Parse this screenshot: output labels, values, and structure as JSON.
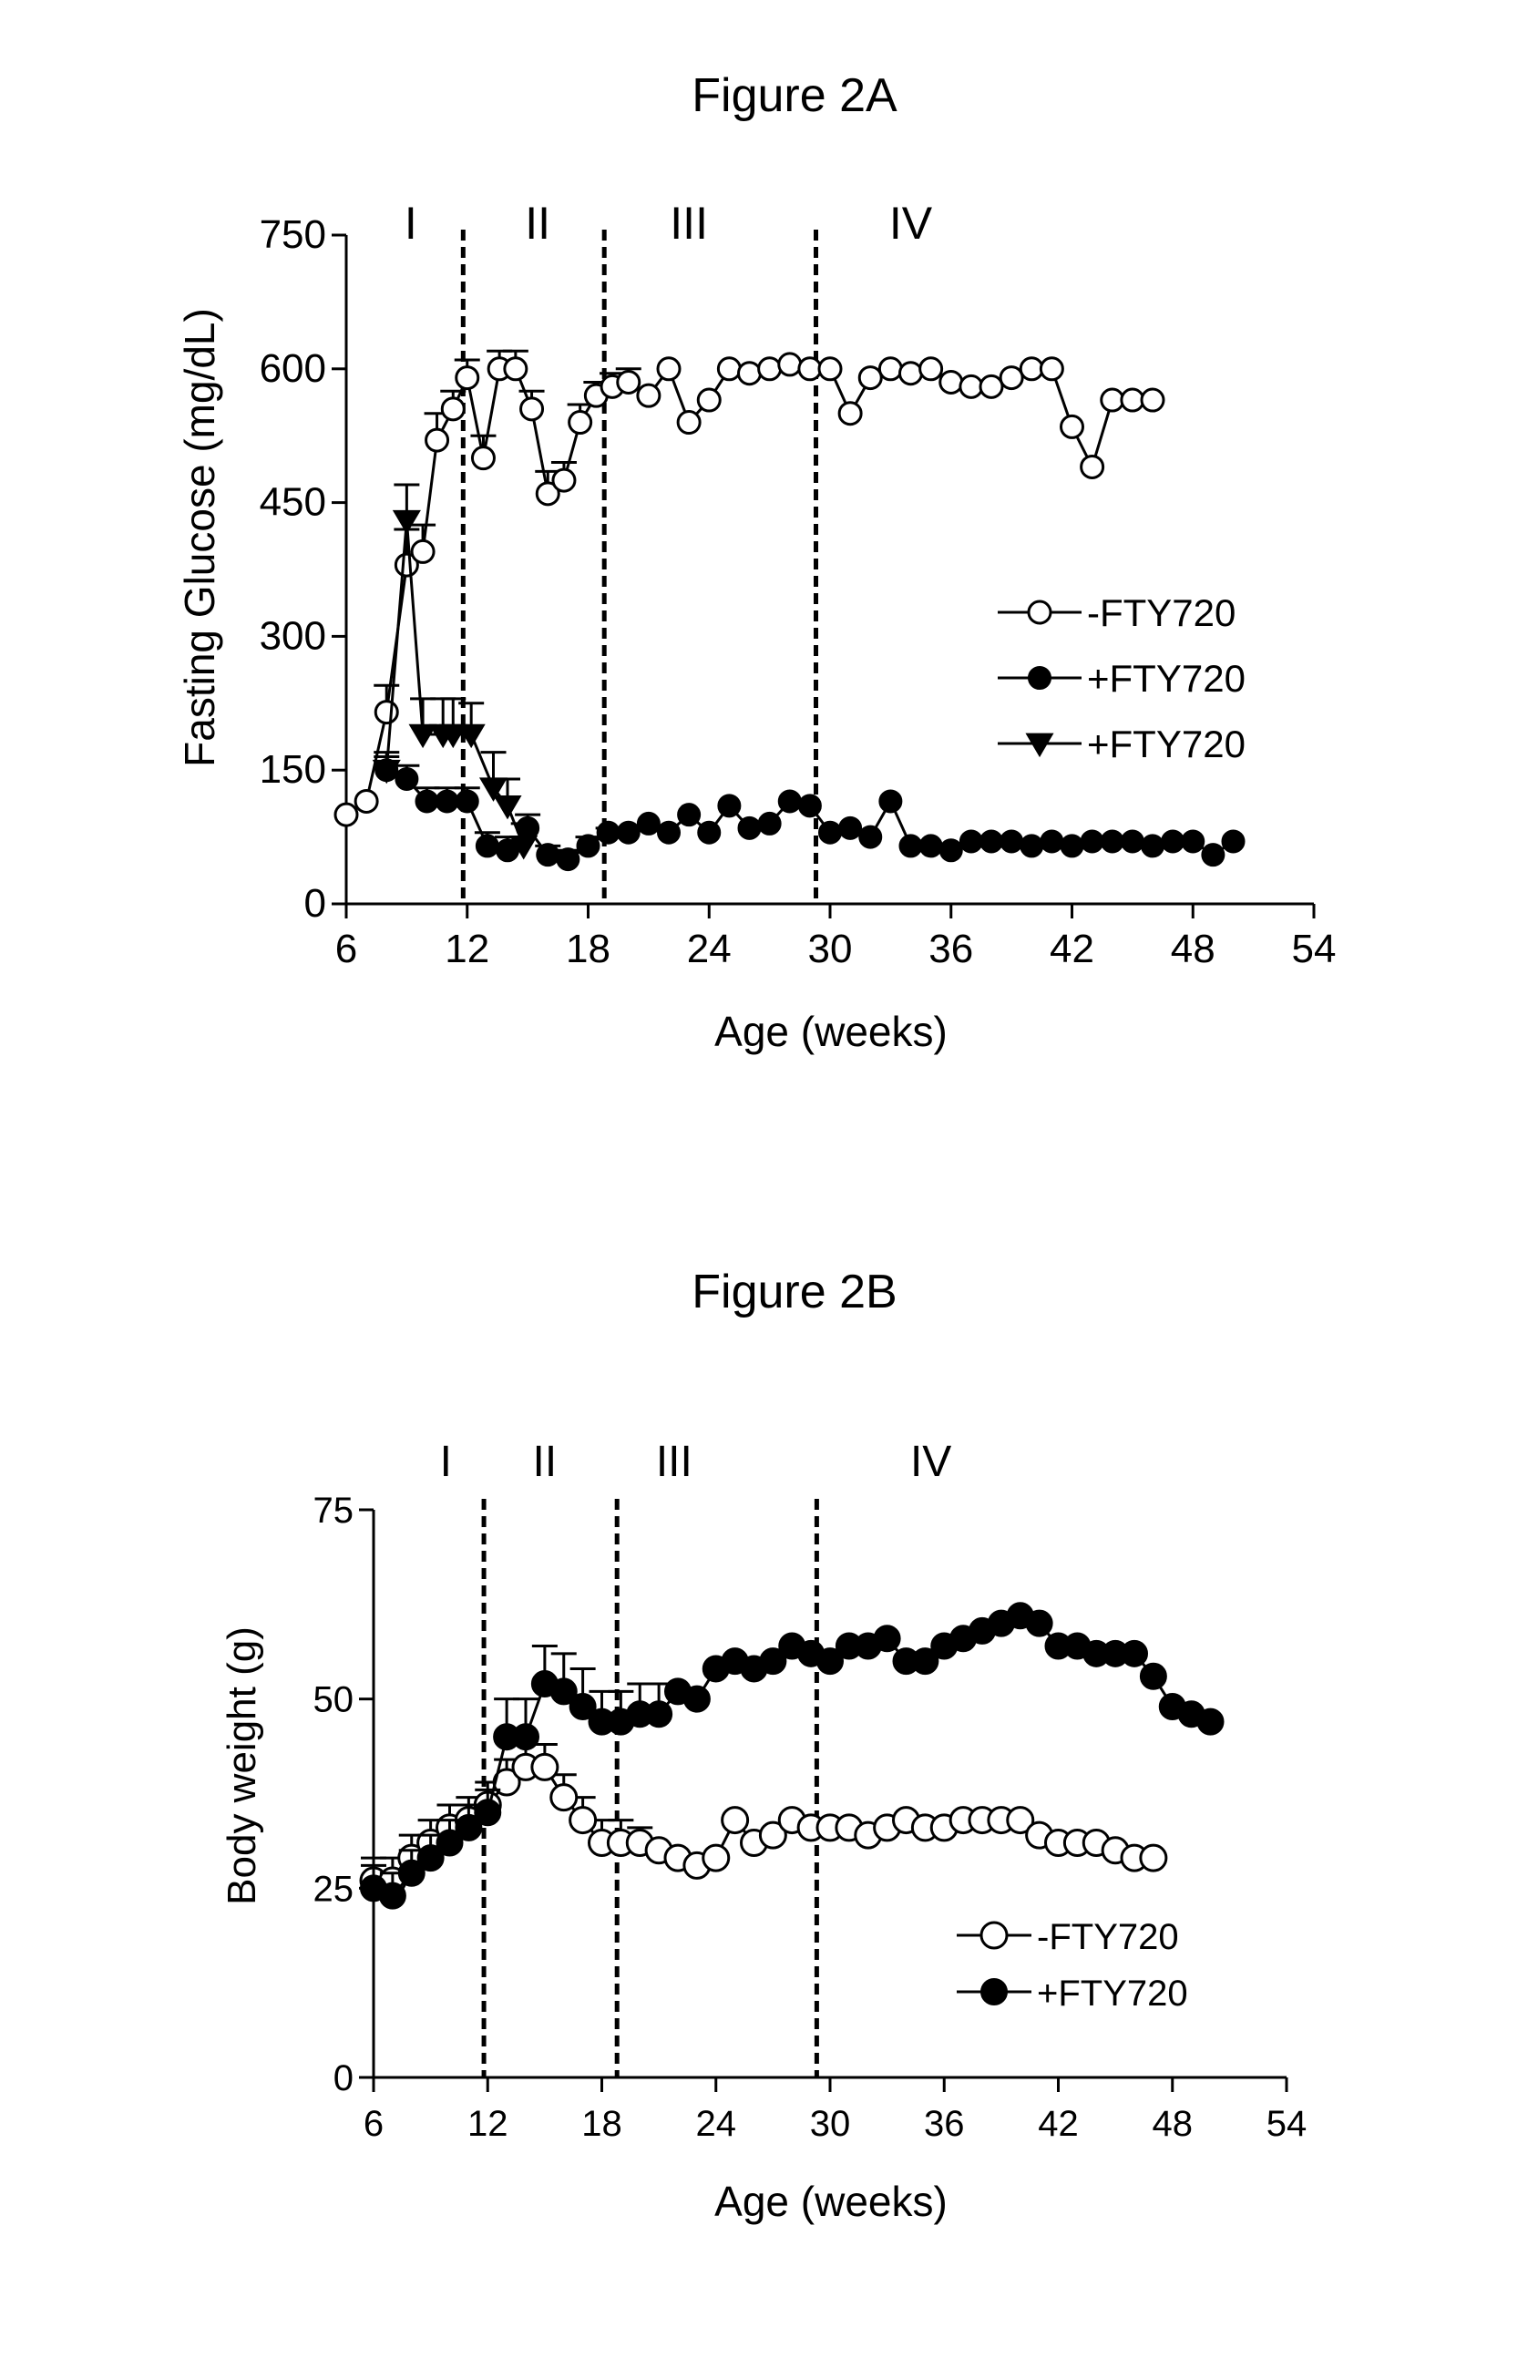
{
  "chart_data": [
    {
      "type": "line",
      "title": "Figure 2A",
      "xlabel": "Age (weeks)",
      "ylabel": "Fasting Glucose (mg/dL)",
      "xlim": [
        6,
        54
      ],
      "ylim": [
        0,
        750
      ],
      "xticks": [
        "6",
        "12",
        "18",
        "24",
        "30",
        "36",
        "42",
        "48",
        "54"
      ],
      "yticks": [
        "0",
        "150",
        "300",
        "450",
        "600",
        "750"
      ],
      "phase_lines": [
        11.8,
        18.8,
        29.3
      ],
      "phases": [
        {
          "label": "I",
          "x": 9.2
        },
        {
          "label": "II",
          "x": 15.5
        },
        {
          "label": "III",
          "x": 23.0
        },
        {
          "label": "IV",
          "x": 34.0
        }
      ],
      "legend_position": "right",
      "grid": false,
      "series": [
        {
          "name": "-FTY720",
          "marker": "open-circle",
          "x": [
            6,
            7,
            8,
            9,
            9.8,
            10.5,
            11.3,
            12,
            12.8,
            13.6,
            14.4,
            15.2,
            16,
            16.8,
            17.6,
            18.4,
            19.2,
            20,
            21,
            22,
            23,
            24,
            25,
            26,
            27,
            28,
            29,
            30,
            31,
            32,
            33,
            34,
            35,
            36,
            37,
            38,
            39,
            40,
            41,
            42,
            43,
            44,
            45,
            46
          ],
          "y": [
            100,
            115,
            215,
            380,
            395,
            520,
            555,
            590,
            500,
            600,
            600,
            555,
            460,
            475,
            540,
            570,
            580,
            585,
            570,
            600,
            540,
            565,
            600,
            595,
            600,
            605,
            600,
            600,
            550,
            590,
            600,
            595,
            600,
            585,
            580,
            580,
            590,
            600,
            600,
            535,
            490,
            565,
            565,
            565
          ],
          "err": [
            0,
            0,
            30,
            40,
            30,
            30,
            20,
            20,
            25,
            20,
            20,
            20,
            25,
            20,
            20,
            15,
            15,
            15,
            0,
            0,
            0,
            0,
            0,
            0,
            0,
            0,
            0,
            0,
            0,
            0,
            0,
            0,
            0,
            0,
            0,
            0,
            0,
            0,
            0,
            0,
            0,
            0,
            0,
            0
          ]
        },
        {
          "name": "+FTY720",
          "marker": "filled-circle",
          "x": [
            8,
            9,
            10,
            11,
            12,
            13,
            14,
            15,
            16,
            17,
            18,
            19,
            20,
            21,
            22,
            23,
            24,
            25,
            26,
            27,
            28,
            29,
            30,
            31,
            32,
            33,
            34,
            35,
            36,
            37,
            38,
            39,
            40,
            41,
            42,
            43,
            44,
            45,
            46,
            47,
            48,
            49,
            50
          ],
          "y": [
            150,
            140,
            115,
            115,
            115,
            65,
            60,
            85,
            55,
            50,
            65,
            80,
            80,
            90,
            80,
            100,
            80,
            110,
            85,
            90,
            115,
            110,
            80,
            85,
            75,
            115,
            65,
            65,
            60,
            70,
            70,
            70,
            65,
            70,
            65,
            70,
            70,
            70,
            65,
            70,
            70,
            55,
            70
          ],
          "err": [
            15,
            15,
            15,
            15,
            15,
            15,
            15,
            15,
            10,
            10,
            10,
            5,
            5,
            0,
            0,
            0,
            0,
            0,
            0,
            0,
            0,
            0,
            0,
            0,
            0,
            0,
            0,
            0,
            0,
            0,
            0,
            0,
            0,
            0,
            0,
            0,
            0,
            0,
            0,
            0,
            0,
            0,
            0
          ]
        },
        {
          "name": "+FTY720",
          "marker": "filled-triangle-down",
          "x": [
            8,
            9,
            9.8,
            10.8,
            11.3,
            12.2,
            13.3,
            14,
            14.8
          ],
          "y": [
            150,
            430,
            190,
            190,
            190,
            190,
            130,
            110,
            65
          ],
          "err": [
            20,
            40,
            40,
            40,
            40,
            35,
            40,
            30,
            25
          ]
        }
      ]
    },
    {
      "type": "line",
      "title": "Figure 2B",
      "xlabel": "Age (weeks)",
      "ylabel": "Body weight (g)",
      "xlim": [
        6,
        54
      ],
      "ylim": [
        0,
        75
      ],
      "xticks": [
        "6",
        "12",
        "18",
        "24",
        "30",
        "36",
        "42",
        "48",
        "54"
      ],
      "yticks": [
        "0",
        "25",
        "50",
        "75"
      ],
      "phase_lines": [
        11.8,
        18.8,
        29.3
      ],
      "phases": [
        {
          "label": "I",
          "x": 9.8
        },
        {
          "label": "II",
          "x": 15.0
        },
        {
          "label": "III",
          "x": 21.8
        },
        {
          "label": "IV",
          "x": 35.3
        }
      ],
      "legend_position": "bottom-right",
      "grid": false,
      "series": [
        {
          "name": "-FTY720",
          "marker": "open-circle",
          "x": [
            6,
            7,
            8,
            9,
            10,
            11,
            12,
            13,
            14,
            15,
            16,
            17,
            18,
            19,
            20,
            21,
            22,
            23,
            24,
            25,
            26,
            27,
            28,
            29,
            30,
            31,
            32,
            33,
            34,
            35,
            36,
            37,
            38,
            39,
            40,
            41,
            42,
            43,
            44,
            45,
            46,
            47
          ],
          "y": [
            26,
            26,
            29,
            31,
            33,
            34,
            36,
            39,
            41,
            41,
            37,
            34,
            31,
            31,
            31,
            30,
            29,
            28,
            29,
            34,
            31,
            32,
            34,
            33,
            33,
            33,
            32,
            33,
            34,
            33,
            33,
            34,
            34,
            34,
            34,
            32,
            31,
            31,
            31,
            30,
            29,
            29
          ],
          "err": [
            3,
            3,
            3,
            3,
            3,
            3,
            3,
            3,
            3,
            3,
            3,
            3,
            3,
            3,
            2,
            0,
            0,
            0,
            0,
            0,
            0,
            0,
            0,
            0,
            0,
            0,
            0,
            0,
            0,
            0,
            0,
            0,
            0,
            0,
            0,
            0,
            0,
            0,
            0,
            0,
            0,
            0
          ]
        },
        {
          "name": "+FTY720",
          "marker": "filled-circle",
          "x": [
            6,
            7,
            8,
            9,
            10,
            11,
            12,
            13,
            14,
            15,
            16,
            17,
            18,
            19,
            20,
            21,
            22,
            23,
            24,
            25,
            26,
            27,
            28,
            29,
            30,
            31,
            32,
            33,
            34,
            35,
            36,
            37,
            38,
            39,
            40,
            41,
            42,
            43,
            44,
            45,
            46,
            47,
            48,
            49,
            50
          ],
          "y": [
            25,
            24,
            27,
            29,
            31,
            33,
            35,
            45,
            45,
            52,
            51,
            49,
            47,
            47,
            48,
            48,
            51,
            50,
            54,
            55,
            54,
            55,
            57,
            56,
            55,
            57,
            57,
            58,
            55,
            55,
            57,
            58,
            59,
            60,
            61,
            60,
            57,
            57,
            56,
            56,
            56,
            53,
            49,
            48,
            47
          ],
          "err": [
            3,
            3,
            3,
            3,
            3,
            3,
            3,
            5,
            5,
            5,
            5,
            5,
            4,
            4,
            4,
            4,
            0,
            0,
            0,
            0,
            0,
            0,
            0,
            0,
            0,
            0,
            0,
            0,
            0,
            0,
            0,
            0,
            0,
            0,
            0,
            0,
            0,
            0,
            0,
            0,
            0,
            0,
            0,
            0,
            0
          ]
        }
      ]
    }
  ]
}
